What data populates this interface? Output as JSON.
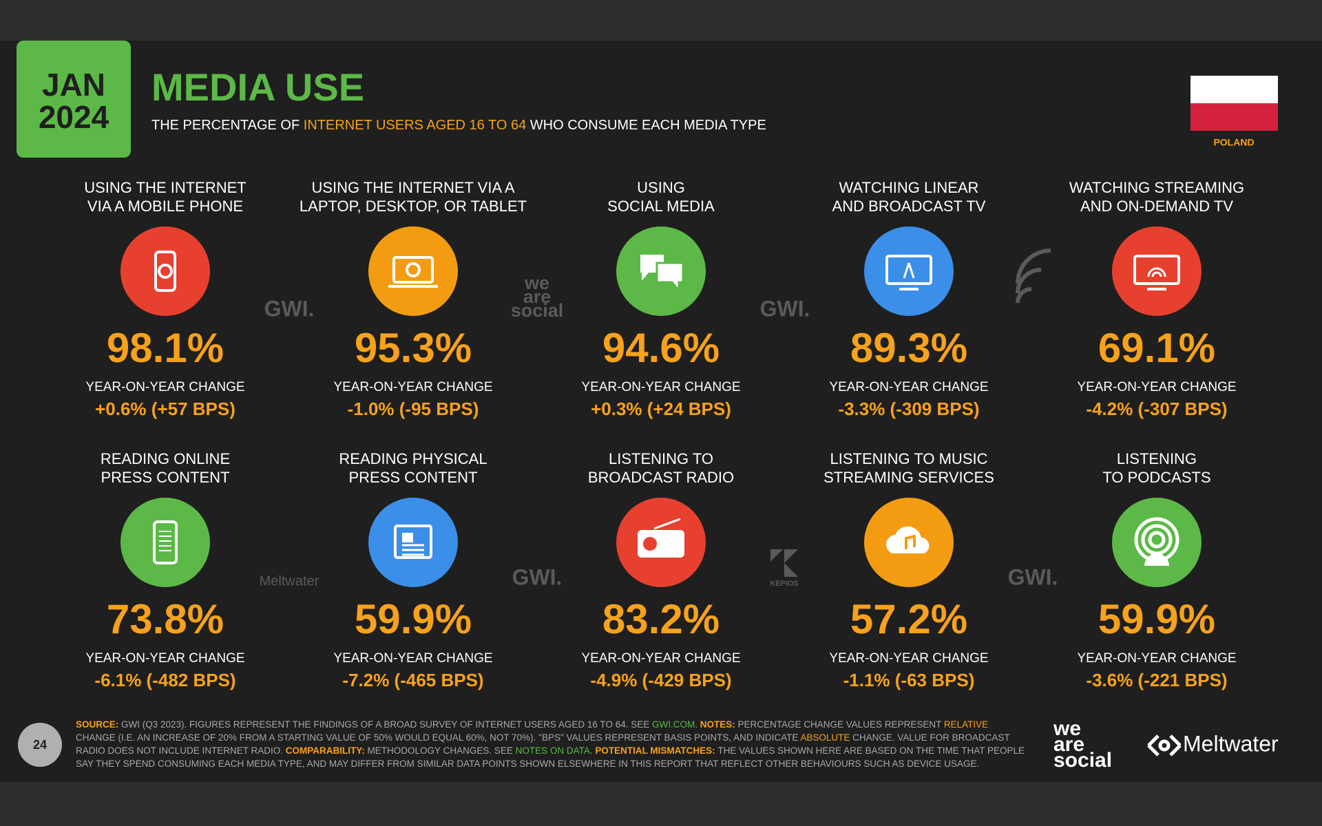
{
  "header": {
    "month": "JAN",
    "year": "2024",
    "title": "MEDIA USE",
    "subtitle": [
      "THE PERCENTAGE OF ",
      "INTERNET USERS AGED 16 TO 64",
      " WHO CONSUME EACH MEDIA TYPE"
    ],
    "country": "POLAND"
  },
  "change_label": "YEAR-ON-YEAR CHANGE",
  "items": [
    {
      "label": [
        "USING THE INTERNET",
        "VIA A MOBILE PHONE"
      ],
      "value": "98.1%",
      "change": "+0.6% (+57 BPS)",
      "color": "#e8402f"
    },
    {
      "label": [
        "USING THE INTERNET VIA A",
        "LAPTOP, DESKTOP, OR TABLET"
      ],
      "value": "95.3%",
      "change": "-1.0% (-95 BPS)",
      "color": "#f39c12"
    },
    {
      "label": [
        "USING",
        "SOCIAL MEDIA"
      ],
      "value": "94.6%",
      "change": "+0.3% (+24 BPS)",
      "color": "#5cb947"
    },
    {
      "label": [
        "WATCHING LINEAR",
        "AND BROADCAST TV"
      ],
      "value": "89.3%",
      "change": "-3.3% (-309 BPS)",
      "color": "#3b8fe8"
    },
    {
      "label": [
        "WATCHING STREAMING",
        "AND ON-DEMAND TV"
      ],
      "value": "69.1%",
      "change": "-4.2% (-307 BPS)",
      "color": "#e8402f"
    },
    {
      "label": [
        "READING ONLINE",
        "PRESS CONTENT"
      ],
      "value": "73.8%",
      "change": "-6.1% (-482 BPS)",
      "color": "#5cb947"
    },
    {
      "label": [
        "READING PHYSICAL",
        "PRESS CONTENT"
      ],
      "value": "59.9%",
      "change": "-7.2% (-465 BPS)",
      "color": "#3b8fe8"
    },
    {
      "label": [
        "LISTENING TO",
        "BROADCAST RADIO"
      ],
      "value": "83.2%",
      "change": "-4.9% (-429 BPS)",
      "color": "#e8402f"
    },
    {
      "label": [
        "LISTENING TO MUSIC",
        "STREAMING SERVICES"
      ],
      "value": "57.2%",
      "change": "-1.1% (-63 BPS)",
      "color": "#f39c12"
    },
    {
      "label": [
        "LISTENING",
        "TO PODCASTS"
      ],
      "value": "59.9%",
      "change": "-3.6% (-221 BPS)",
      "color": "#5cb947"
    }
  ],
  "watermarks": [
    "GWI.",
    "we",
    "are",
    "social",
    "Meltwater",
    "KEPIOS"
  ],
  "footer": {
    "page": "24",
    "notes": [
      {
        "text": "SOURCE: ",
        "style": "key"
      },
      {
        "text": "GWI (Q3 2023). FIGURES REPRESENT THE FINDINGS OF A BROAD SURVEY OF INTERNET USERS AGED 16 TO 64. SEE ",
        "style": "plain"
      },
      {
        "text": "GWI.COM",
        "style": "link"
      },
      {
        "text": ". ",
        "style": "plain"
      },
      {
        "text": "NOTES: ",
        "style": "key"
      },
      {
        "text": "PERCENTAGE CHANGE VALUES REPRESENT ",
        "style": "plain"
      },
      {
        "text": "RELATIVE",
        "style": "accent"
      },
      {
        "text": " CHANGE (I.E. AN INCREASE OF 20% FROM A STARTING VALUE OF 50% WOULD EQUAL 60%, NOT 70%). \"BPS\" VALUES REPRESENT BASIS POINTS, AND INDICATE ",
        "style": "plain"
      },
      {
        "text": "ABSOLUTE",
        "style": "accent"
      },
      {
        "text": " CHANGE. VALUE FOR BROADCAST RADIO DOES NOT INCLUDE INTERNET RADIO. ",
        "style": "plain"
      },
      {
        "text": "COMPARABILITY: ",
        "style": "key"
      },
      {
        "text": "METHODOLOGY CHANGES. SEE ",
        "style": "plain"
      },
      {
        "text": "NOTES ON DATA",
        "style": "link"
      },
      {
        "text": ". ",
        "style": "plain"
      },
      {
        "text": "POTENTIAL MISMATCHES: ",
        "style": "key"
      },
      {
        "text": "THE VALUES SHOWN HERE ARE BASED ON THE TIME THAT PEOPLE SAY THEY SPEND CONSUMING EACH MEDIA TYPE, AND MAY DIFFER FROM SIMILAR DATA POINTS SHOWN ELSEWHERE IN THIS REPORT THAT REFLECT OTHER BEHAVIOURS SUCH AS DEVICE USAGE.",
        "style": "plain"
      }
    ],
    "logos": [
      "we",
      "are",
      "social",
      "Meltwater"
    ]
  }
}
